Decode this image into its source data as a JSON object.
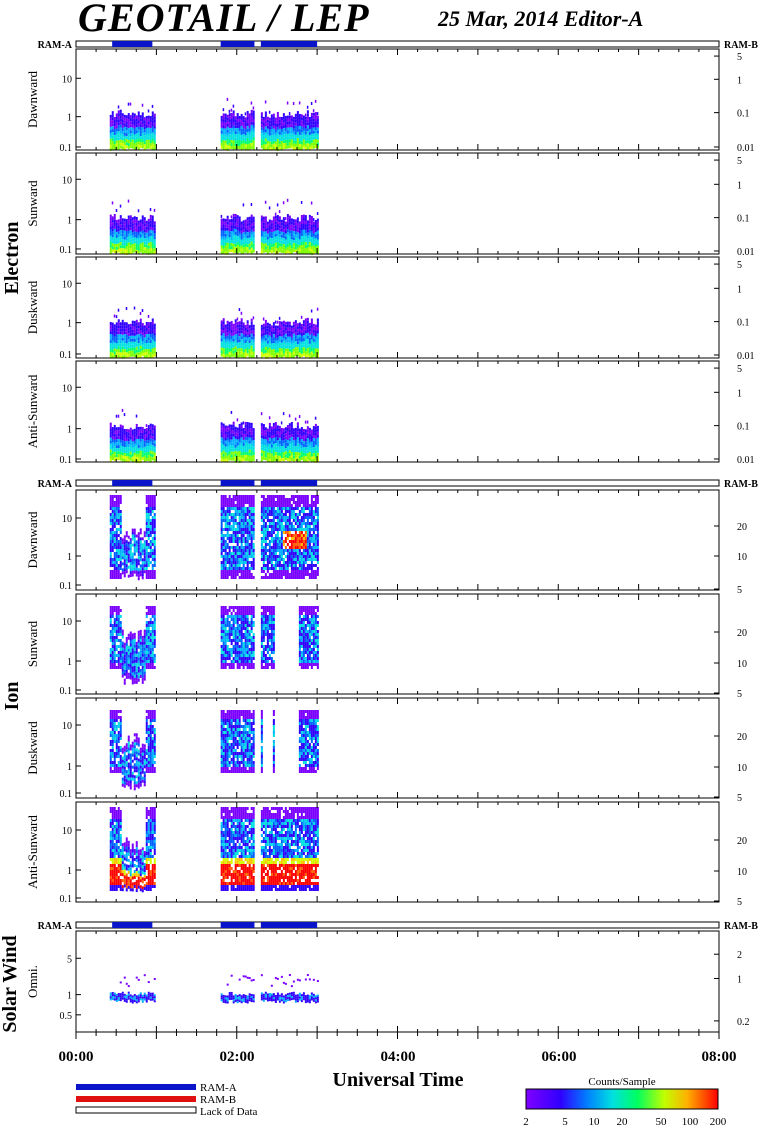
{
  "header": {
    "title": "GEOTAIL / LEP",
    "date_editor": "25 Mar, 2014   Editor-A"
  },
  "colors": {
    "ram_a": "#0a14c8",
    "ram_b": "#e01010",
    "lack": "#ffffff",
    "panel_frame": "#000000"
  },
  "mode_bar": {
    "left_label": "RAM-A",
    "right_label": "RAM-B",
    "segments_ut_hours": [
      [
        0.45,
        0.95
      ],
      [
        1.8,
        2.22
      ],
      [
        2.3,
        3.0
      ]
    ]
  },
  "groups": {
    "electron": "Electron",
    "ion": "Ion",
    "solar_wind": "Solar Wind"
  },
  "xaxis": {
    "label": "Universal Time",
    "range_hours": [
      0,
      8
    ],
    "ticks": [
      "00:00",
      "02:00",
      "04:00",
      "06:00",
      "08:00"
    ]
  },
  "legend": {
    "ram_a": "RAM-A",
    "ram_b": "RAM-B",
    "lack": "Lack of Data",
    "colorbar_title": "Counts/Sample",
    "colorbar_ticks": [
      "2",
      "5",
      "10",
      "20",
      "50",
      "100",
      "200"
    ]
  },
  "chart_data": [
    {
      "type": "heatmap",
      "group": "Electron",
      "ylabel": "Dawnward",
      "yscale": "log",
      "left_ticks": [
        "10",
        "1",
        "0.1"
      ],
      "right_ticks": [
        "5",
        "1",
        "0.1",
        "0.01"
      ],
      "x_label": "Universal Time",
      "data_intervals_ut_hours": [
        [
          0.42,
          0.97
        ],
        [
          1.8,
          2.22
        ],
        [
          2.3,
          3.0
        ]
      ]
    },
    {
      "type": "heatmap",
      "group": "Electron",
      "ylabel": "Sunward",
      "yscale": "log",
      "left_ticks": [
        "10",
        "1",
        "0.1"
      ],
      "right_ticks": [
        "5",
        "1",
        "0.1",
        "0.01"
      ],
      "x_label": "Universal Time",
      "data_intervals_ut_hours": [
        [
          0.42,
          0.97
        ],
        [
          1.8,
          2.22
        ],
        [
          2.3,
          3.0
        ]
      ]
    },
    {
      "type": "heatmap",
      "group": "Electron",
      "ylabel": "Duskward",
      "yscale": "log",
      "left_ticks": [
        "10",
        "1",
        "0.1"
      ],
      "right_ticks": [
        "5",
        "1",
        "0.1",
        "0.01"
      ],
      "x_label": "Universal Time",
      "data_intervals_ut_hours": [
        [
          0.42,
          0.97
        ],
        [
          1.8,
          2.22
        ],
        [
          2.3,
          3.0
        ]
      ]
    },
    {
      "type": "heatmap",
      "group": "Electron",
      "ylabel": "Anti-Sunward",
      "yscale": "log",
      "left_ticks": [
        "10",
        "1",
        "0.1"
      ],
      "right_ticks": [
        "5",
        "1",
        "0.1",
        "0.01"
      ],
      "x_label": "Universal Time",
      "data_intervals_ut_hours": [
        [
          0.42,
          0.97
        ],
        [
          1.8,
          2.22
        ],
        [
          2.3,
          3.0
        ]
      ]
    },
    {
      "type": "heatmap",
      "group": "Ion",
      "ylabel": "Dawnward",
      "yscale": "log",
      "left_ticks": [
        "10",
        "1",
        "0.1"
      ],
      "right_ticks": [
        "20",
        "10",
        "5"
      ],
      "x_label": "Universal Time",
      "data_intervals_ut_hours": [
        [
          0.42,
          0.97
        ],
        [
          1.8,
          2.22
        ],
        [
          2.3,
          3.0
        ]
      ]
    },
    {
      "type": "heatmap",
      "group": "Ion",
      "ylabel": "Sunward",
      "yscale": "log",
      "left_ticks": [
        "10",
        "1",
        "0.1"
      ],
      "right_ticks": [
        "20",
        "10",
        "5"
      ],
      "x_label": "Universal Time",
      "data_intervals_ut_hours": [
        [
          0.42,
          0.97
        ],
        [
          1.8,
          2.22
        ],
        [
          2.3,
          3.0
        ]
      ]
    },
    {
      "type": "heatmap",
      "group": "Ion",
      "ylabel": "Duskward",
      "yscale": "log",
      "left_ticks": [
        "10",
        "1",
        "0.1"
      ],
      "right_ticks": [
        "20",
        "10",
        "5"
      ],
      "x_label": "Universal Time",
      "data_intervals_ut_hours": [
        [
          0.42,
          0.97
        ],
        [
          1.8,
          2.22
        ],
        [
          2.3,
          3.0
        ]
      ]
    },
    {
      "type": "heatmap",
      "group": "Ion",
      "ylabel": "Anti-Sunward",
      "yscale": "log",
      "left_ticks": [
        "10",
        "1",
        "0.1"
      ],
      "right_ticks": [
        "20",
        "10",
        "5"
      ],
      "x_label": "Universal Time",
      "data_intervals_ut_hours": [
        [
          0.42,
          0.97
        ],
        [
          1.8,
          2.22
        ],
        [
          2.3,
          3.0
        ]
      ]
    },
    {
      "type": "heatmap",
      "group": "Solar Wind",
      "ylabel": "Omni.",
      "yscale": "log",
      "left_ticks": [
        "5",
        "1",
        "0.5"
      ],
      "right_ticks": [
        "2",
        "1",
        "0.2"
      ],
      "x_label": "Universal Time",
      "data_intervals_ut_hours": [
        [
          0.42,
          0.97
        ],
        [
          1.8,
          2.22
        ],
        [
          2.3,
          3.0
        ]
      ]
    }
  ]
}
